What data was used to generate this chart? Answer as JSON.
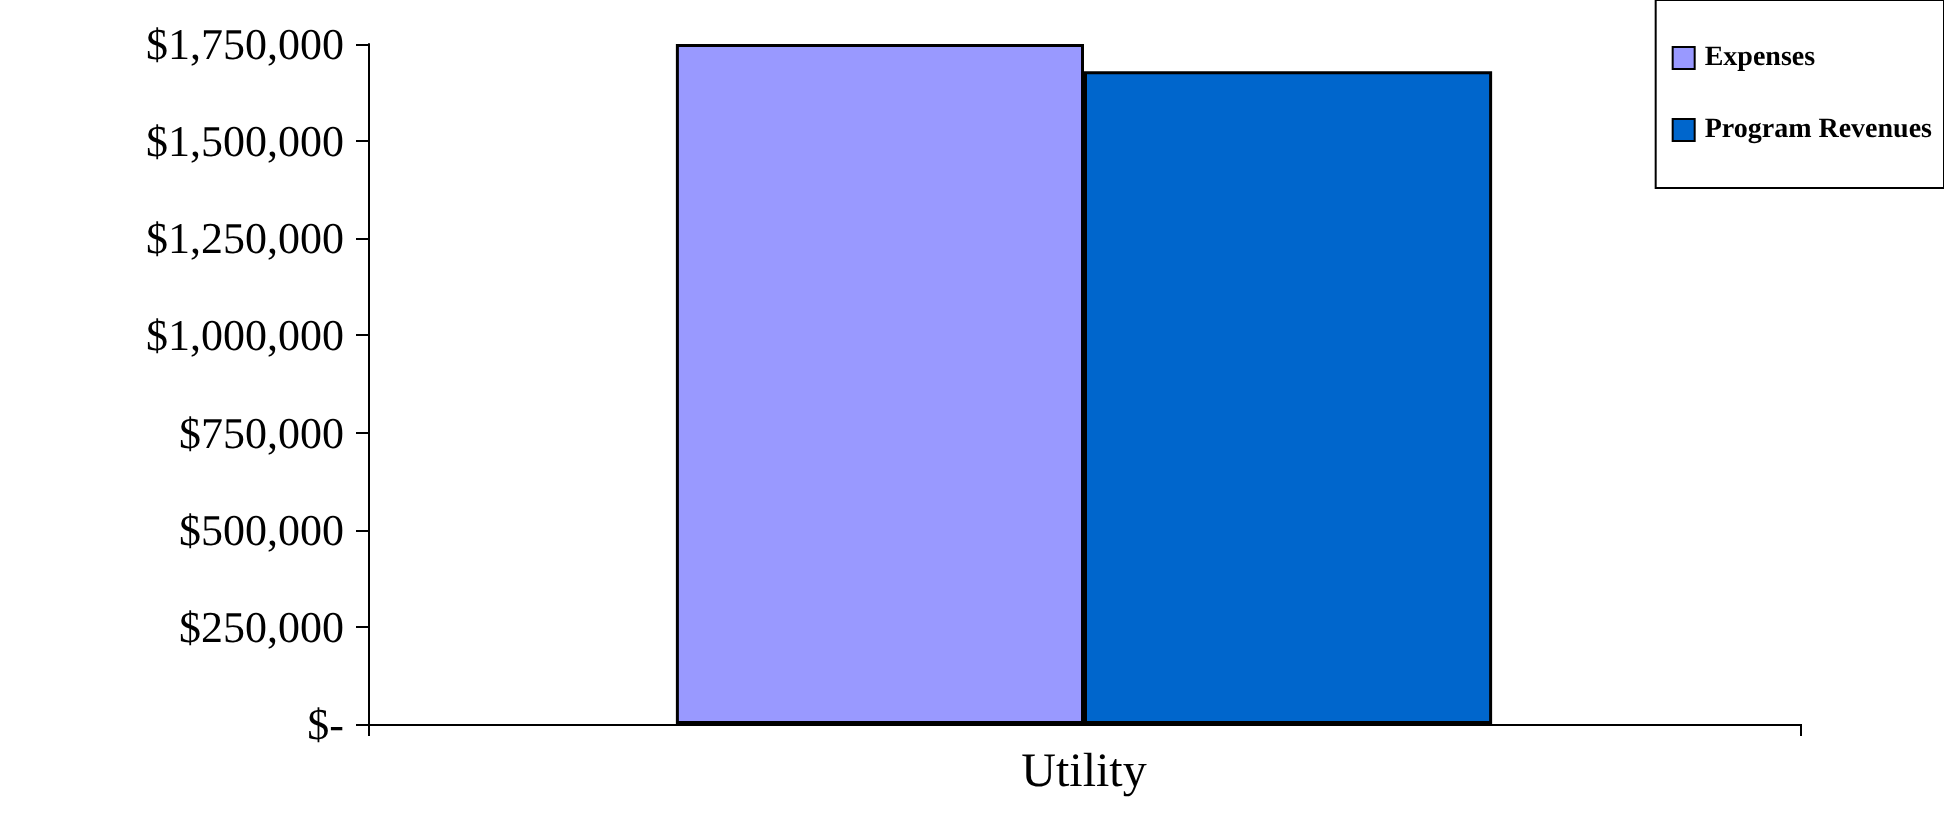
{
  "chart_data": {
    "type": "bar",
    "categories": [
      "Utility"
    ],
    "series": [
      {
        "name": "Expenses",
        "color": "#9999ff",
        "values": [
          1750000
        ]
      },
      {
        "name": "Program Revenues",
        "color": "#0066cc",
        "values": [
          1680000
        ]
      }
    ],
    "ylim": [
      0,
      1750000
    ],
    "yticks": [
      {
        "value": 0,
        "label": "$-"
      },
      {
        "value": 250000,
        "label": "$250,000"
      },
      {
        "value": 500000,
        "label": "$500,000"
      },
      {
        "value": 750000,
        "label": "$750,000"
      },
      {
        "value": 1000000,
        "label": "$1,000,000"
      },
      {
        "value": 1250000,
        "label": "$1,250,000"
      },
      {
        "value": 1500000,
        "label": "$1,500,000"
      },
      {
        "value": 1750000,
        "label": "$1,750,000"
      }
    ],
    "grid": false,
    "legend": "top right"
  }
}
